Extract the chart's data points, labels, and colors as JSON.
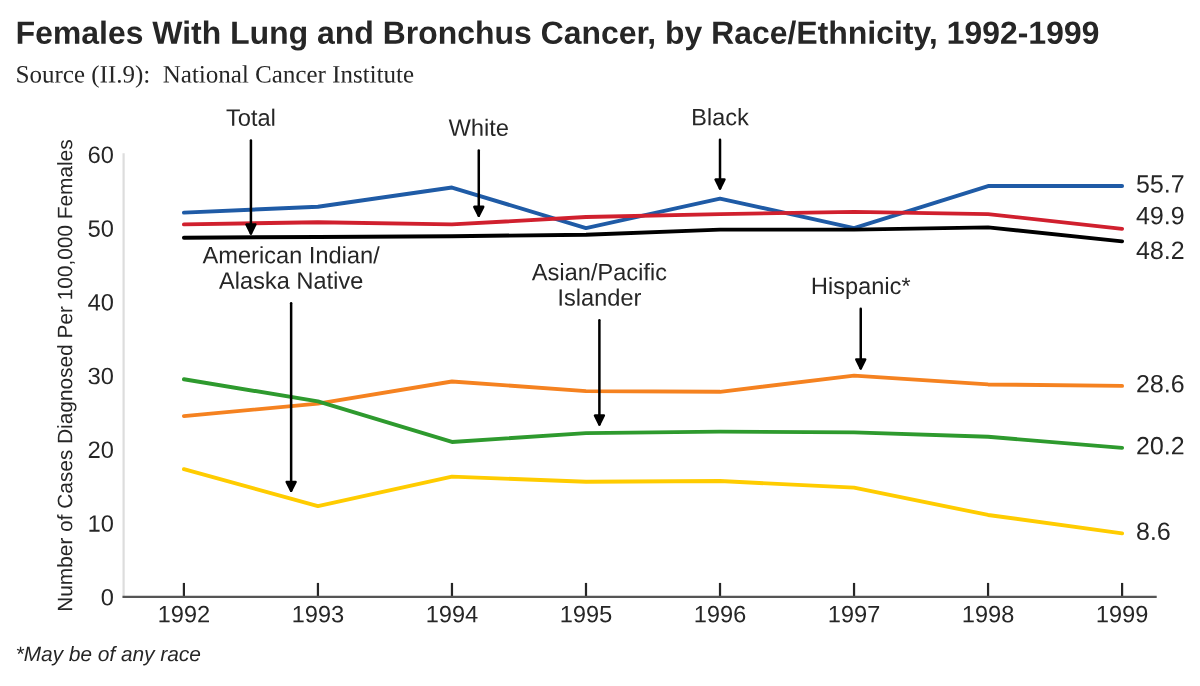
{
  "chart_data": {
    "type": "line",
    "title": "Females With Lung and Bronchus Cancer, by Race/Ethnicity, 1992-1999",
    "subtitle": "Source (II.9):  National Cancer Institute",
    "ylabel": "Number of Cases Diagnosed Per 100,000 Females",
    "x": [
      1992,
      1993,
      1994,
      1995,
      1996,
      1997,
      1998,
      1999
    ],
    "xlim": [
      1991.55,
      1999.25
    ],
    "xticks": [
      1992,
      1993,
      1994,
      1995,
      1996,
      1997,
      1998,
      1999
    ],
    "ylim": [
      0,
      60
    ],
    "yticks": [
      0,
      10,
      20,
      30,
      40,
      50,
      60
    ],
    "grid": false,
    "legend": false,
    "series": [
      {
        "color": "#1f5ba6",
        "values": [
          52.1,
          52.9,
          55.5,
          50.0,
          54.0,
          50.0,
          55.7,
          55.7
        ],
        "value_labels": [
          null,
          null,
          null,
          null,
          null,
          null,
          null,
          "55.7"
        ]
      },
      {
        "color": "#d0202e",
        "values": [
          50.5,
          50.8,
          50.5,
          51.5,
          51.9,
          52.2,
          51.9,
          49.9
        ],
        "value_labels": [
          null,
          null,
          null,
          null,
          null,
          null,
          null,
          "49.9"
        ]
      },
      {
        "color": "#000000",
        "values": [
          48.7,
          48.8,
          48.9,
          49.1,
          49.8,
          49.8,
          50.1,
          48.2
        ],
        "value_labels": [
          null,
          null,
          null,
          null,
          null,
          null,
          null,
          "48.2"
        ]
      },
      {
        "color": "#f58220",
        "values": [
          24.5,
          26.2,
          29.2,
          27.9,
          27.8,
          30.0,
          28.8,
          28.6
        ],
        "value_labels": [
          null,
          null,
          null,
          null,
          null,
          null,
          null,
          "28.6"
        ]
      },
      {
        "color": "#2e9a2e",
        "values": [
          29.5,
          26.5,
          21.0,
          22.2,
          22.4,
          22.3,
          21.7,
          20.2
        ],
        "value_labels": [
          null,
          null,
          null,
          null,
          null,
          null,
          null,
          "20.2"
        ]
      },
      {
        "color": "#ffcc00",
        "values": [
          17.3,
          12.3,
          16.3,
          15.6,
          15.7,
          14.8,
          11.1,
          8.6
        ],
        "value_labels": [
          null,
          null,
          null,
          null,
          null,
          null,
          null,
          "8.6"
        ]
      }
    ],
    "annotations": [
      {
        "text": "Total",
        "x": 1992.5,
        "y": 48.9
      },
      {
        "text": "White",
        "x": 1994.2,
        "y": 51.3
      },
      {
        "text": "Black",
        "x": 1996.0,
        "y": 55.0
      },
      {
        "text": "Asian/Pacific\nIslander",
        "x": 1995.1,
        "y": 23.0
      },
      {
        "text": "Hispanic*",
        "x": 1997.05,
        "y": 30.6
      },
      {
        "text": "American Indian/\nAlaska Native",
        "x": 1992.8,
        "y": 14.0
      },
      "*May be of any race"
    ]
  }
}
